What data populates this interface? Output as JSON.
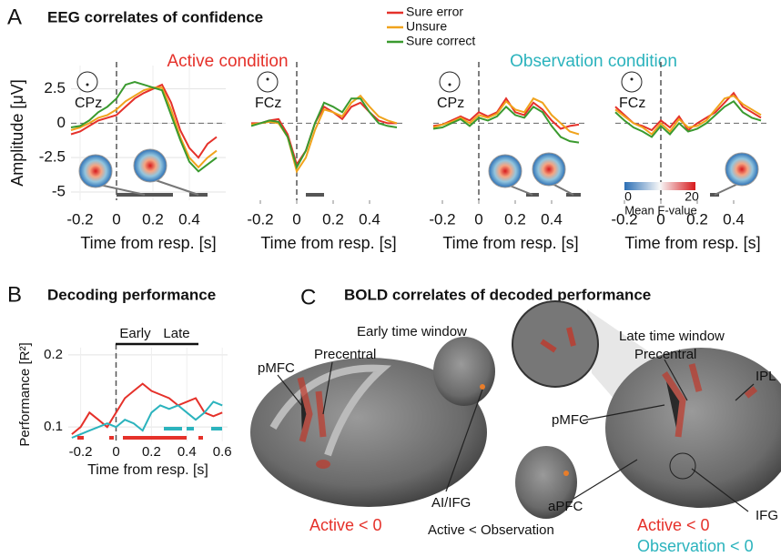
{
  "panels": {
    "a": {
      "label": "A",
      "title": "EEG correlates of confidence",
      "active": "Active condition",
      "observation": "Observation condition"
    },
    "b": {
      "label": "B",
      "title": "Decoding performance"
    },
    "c": {
      "label": "C",
      "title": "BOLD correlates of decoded performance",
      "early": "Early time window",
      "late": "Late time window",
      "early_labels": [
        "pMFC",
        "Precentral",
        "AI/IFG"
      ],
      "late_labels": [
        "Precentral",
        "IPL",
        "pMFC",
        "aPFC",
        "IFG"
      ],
      "contrast_middle": "Active < Observation",
      "contrast_left": "Active < 0",
      "contrast_right": [
        "Active < 0",
        "Observation < 0"
      ]
    }
  },
  "chart_data": [
    {
      "type": "line",
      "label": "CPz",
      "xlabel": "Time from resp. [s]",
      "ylabel": "Amplitude [μV]",
      "x": [
        -0.25,
        -0.2,
        -0.15,
        -0.1,
        -0.05,
        0,
        0.05,
        0.1,
        0.15,
        0.2,
        0.25,
        0.3,
        0.35,
        0.4,
        0.45,
        0.5,
        0.55
      ],
      "series": [
        {
          "name": "Sure error",
          "color": "#e5312a",
          "values": [
            -0.8,
            -0.6,
            -0.2,
            0.2,
            0.4,
            0.6,
            1.2,
            1.8,
            2.2,
            2.5,
            2.8,
            1.5,
            -0.5,
            -1.8,
            -2.5,
            -1.5,
            -1.0
          ]
        },
        {
          "name": "Unsure",
          "color": "#f0a31c",
          "values": [
            -0.5,
            -0.3,
            0,
            0.4,
            0.6,
            1,
            1.6,
            2,
            2.4,
            2.6,
            2.6,
            1,
            -1,
            -2.5,
            -3.2,
            -2.5,
            -2
          ]
        },
        {
          "name": "Sure correct",
          "color": "#3a9a2f",
          "values": [
            -0.3,
            -0.2,
            0.2,
            0.8,
            1.2,
            1.8,
            2.8,
            3,
            2.8,
            2.6,
            2.4,
            0.6,
            -1.2,
            -2.8,
            -3.5,
            -3,
            -2.5
          ]
        }
      ],
      "xlim": [
        -0.25,
        0.6
      ],
      "ylim": [
        -5.6,
        4.2
      ],
      "xticks": [
        -0.2,
        0,
        0.2,
        0.4
      ],
      "yticks": [
        -5,
        -2.5,
        0,
        2.5
      ],
      "grid": true
    },
    {
      "type": "line",
      "label": "FCz",
      "xlabel": "Time from resp. [s]",
      "x": [
        -0.25,
        -0.2,
        -0.15,
        -0.1,
        -0.05,
        0,
        0.05,
        0.1,
        0.15,
        0.2,
        0.25,
        0.3,
        0.35,
        0.4,
        0.45,
        0.5,
        0.55
      ],
      "series": [
        {
          "color": "#e5312a",
          "values": [
            0,
            0,
            0.2,
            0.3,
            -0.8,
            -3,
            -2,
            0,
            1.2,
            0.8,
            0.3,
            1.2,
            1.5,
            0.8,
            0.2,
            0,
            0
          ]
        },
        {
          "color": "#f0a31c",
          "values": [
            -0.1,
            0,
            0.1,
            0,
            -1,
            -3.5,
            -2.5,
            -0.5,
            1,
            0.8,
            0.5,
            1.5,
            2,
            1.2,
            0.5,
            0.2,
            0
          ]
        },
        {
          "color": "#3a9a2f",
          "values": [
            -0.2,
            0,
            0.2,
            0.1,
            -1,
            -3.2,
            -2,
            0,
            1.5,
            1.2,
            0.8,
            1.8,
            1.8,
            0.8,
            0,
            -0.2,
            -0.3
          ]
        }
      ],
      "xlim": [
        -0.25,
        0.6
      ],
      "ylim": [
        -5.6,
        4.2
      ],
      "xticks": [
        -0.2,
        0,
        0.2,
        0.4
      ]
    },
    {
      "type": "line",
      "label": "CPz",
      "xlabel": "Time from resp. [s]",
      "x": [
        -0.25,
        -0.2,
        -0.15,
        -0.1,
        -0.05,
        0,
        0.05,
        0.1,
        0.15,
        0.2,
        0.25,
        0.3,
        0.35,
        0.4,
        0.45,
        0.5,
        0.55
      ],
      "series": [
        {
          "color": "#e5312a",
          "values": [
            -0.2,
            -0.1,
            0.2,
            0.5,
            0.2,
            0.8,
            0.5,
            0.8,
            1.8,
            0.8,
            0.6,
            1.5,
            1,
            0.2,
            -0.4,
            -0.2,
            -0.1
          ]
        },
        {
          "color": "#f0a31c",
          "values": [
            -0.3,
            -0.1,
            0.1,
            0.4,
            0,
            0.6,
            0.4,
            0.7,
            1.6,
            1,
            0.8,
            1.8,
            1.5,
            0.6,
            0,
            -0.6,
            -0.8
          ]
        },
        {
          "color": "#3a9a2f",
          "values": [
            -0.4,
            -0.3,
            0,
            0.3,
            -0.2,
            0.4,
            0.2,
            0.5,
            1.2,
            0.6,
            0.4,
            1.2,
            0.8,
            -0.2,
            -1,
            -1.3,
            -1.4
          ]
        }
      ],
      "xlim": [
        -0.25,
        0.6
      ],
      "ylim": [
        -5.6,
        4.2
      ],
      "xticks": [
        -0.2,
        0,
        0.2,
        0.4
      ]
    },
    {
      "type": "line",
      "label": "FCz",
      "xlabel": "Time from resp. [s]",
      "x": [
        -0.25,
        -0.2,
        -0.15,
        -0.1,
        -0.05,
        0,
        0.05,
        0.1,
        0.15,
        0.2,
        0.25,
        0.3,
        0.35,
        0.4,
        0.45,
        0.5,
        0.55
      ],
      "series": [
        {
          "color": "#e5312a",
          "values": [
            1.2,
            0.6,
            0,
            -0.2,
            -0.5,
            0.2,
            -0.3,
            0.5,
            -0.5,
            0,
            0.4,
            0.8,
            1.5,
            2.2,
            1.2,
            0.8,
            0.4
          ]
        },
        {
          "color": "#f0a31c",
          "values": [
            1,
            0.5,
            0,
            -0.3,
            -0.8,
            0,
            -0.6,
            0.3,
            -0.3,
            -0.2,
            0.2,
            1,
            1.8,
            2,
            1.4,
            1,
            0.6
          ]
        },
        {
          "color": "#3a9a2f",
          "values": [
            0.8,
            0.2,
            -0.3,
            -0.6,
            -1,
            -0.2,
            -0.8,
            0,
            -0.6,
            -0.4,
            0,
            0.6,
            1.2,
            1.6,
            0.8,
            0.4,
            0.2
          ]
        }
      ],
      "xlim": [
        -0.25,
        0.6
      ],
      "ylim": [
        -5.6,
        4.2
      ],
      "xticks": [
        -0.2,
        0,
        0.2,
        0.4
      ],
      "colorbar": {
        "ticks": [
          0,
          20
        ],
        "label": "Mean F-value"
      }
    },
    {
      "type": "line",
      "xlabel": "Time from resp. [s]",
      "ylabel": "Performance [R²]",
      "x": [
        -0.25,
        -0.2,
        -0.15,
        -0.1,
        -0.05,
        0,
        0.05,
        0.1,
        0.15,
        0.2,
        0.25,
        0.3,
        0.35,
        0.4,
        0.45,
        0.5,
        0.55,
        0.6
      ],
      "series": [
        {
          "color": "#e5312a",
          "values": [
            0.09,
            0.1,
            0.12,
            0.11,
            0.1,
            0.12,
            0.14,
            0.15,
            0.16,
            0.15,
            0.145,
            0.14,
            0.13,
            0.135,
            0.14,
            0.12,
            0.115,
            0.12
          ]
        },
        {
          "color": "#2bb3bd",
          "values": [
            0.085,
            0.09,
            0.095,
            0.1,
            0.105,
            0.1,
            0.11,
            0.105,
            0.095,
            0.12,
            0.13,
            0.125,
            0.13,
            0.12,
            0.11,
            0.12,
            0.135,
            0.13
          ]
        }
      ],
      "xlim": [
        -0.27,
        0.63
      ],
      "ylim": [
        0.08,
        0.21
      ],
      "xticks": [
        -0.2,
        0,
        0.2,
        0.4,
        0.6
      ],
      "yticks": [
        0.1,
        0.2
      ],
      "grid": true,
      "annotations": [
        "Early",
        "Late"
      ]
    }
  ]
}
